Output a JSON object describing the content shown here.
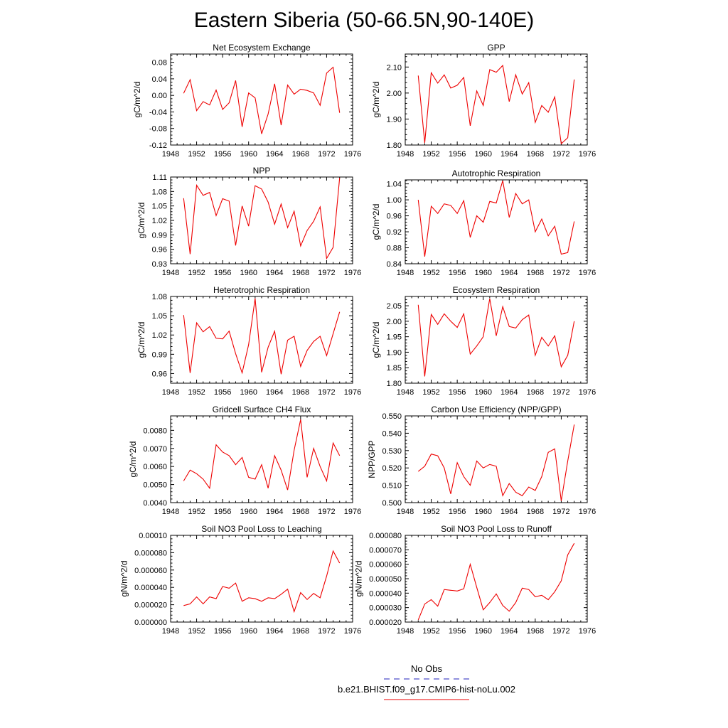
{
  "figure": {
    "title": "Eastern Siberia (50-66.5N,90-140E)",
    "legend": {
      "entries": [
        {
          "label": "No Obs",
          "color": "#2222bb",
          "style": "dashed"
        },
        {
          "label": "b.e21.BHIST.f09_g17.CMIP6-hist-noLu.002",
          "color": "#ee0000",
          "style": "solid"
        }
      ]
    }
  },
  "chart_data": [
    {
      "type": "line",
      "title": "Net Ecosystem Exchange",
      "ylabel": "gC/m^2/d",
      "xlim": [
        1948,
        1976
      ],
      "xticks": [
        1948,
        1952,
        1956,
        1960,
        1964,
        1968,
        1972,
        1976
      ],
      "ylim": [
        -0.12,
        0.1
      ],
      "yticks": [
        -0.12,
        -0.08,
        -0.04,
        0.0,
        0.04,
        0.08
      ],
      "ytick_labels": [
        "-0.12",
        "-0.08",
        "-0.04",
        "0.00",
        "0.04",
        "0.08"
      ],
      "color": "#ee0000",
      "x": [
        1950,
        1951,
        1952,
        1953,
        1954,
        1955,
        1956,
        1957,
        1958,
        1959,
        1960,
        1961,
        1962,
        1963,
        1964,
        1965,
        1966,
        1967,
        1968,
        1969,
        1970,
        1971,
        1972,
        1973,
        1974
      ],
      "y": [
        0.005,
        0.038,
        -0.037,
        -0.015,
        -0.023,
        0.013,
        -0.034,
        -0.018,
        0.036,
        -0.076,
        0.006,
        -0.006,
        -0.093,
        -0.045,
        0.028,
        -0.072,
        0.025,
        0.003,
        0.015,
        0.012,
        0.006,
        -0.024,
        0.054,
        0.068,
        -0.042
      ]
    },
    {
      "type": "line",
      "title": "GPP",
      "ylabel": "gC/m^2/d",
      "xlim": [
        1948,
        1976
      ],
      "xticks": [
        1948,
        1952,
        1956,
        1960,
        1964,
        1968,
        1972,
        1976
      ],
      "ylim": [
        1.8,
        2.15
      ],
      "yticks": [
        1.8,
        1.9,
        2.0,
        2.1
      ],
      "ytick_labels": [
        "1.80",
        "1.90",
        "2.00",
        "2.10"
      ],
      "color": "#ee0000",
      "x": [
        1950,
        1951,
        1952,
        1953,
        1954,
        1955,
        1956,
        1957,
        1958,
        1959,
        1960,
        1961,
        1962,
        1963,
        1964,
        1965,
        1966,
        1967,
        1968,
        1969,
        1970,
        1971,
        1972,
        1973,
        1974
      ],
      "y": [
        2.067,
        1.808,
        2.078,
        2.038,
        2.07,
        2.019,
        2.03,
        2.06,
        1.874,
        2.008,
        1.952,
        2.09,
        2.08,
        2.106,
        1.967,
        2.07,
        1.996,
        2.04,
        1.887,
        1.952,
        1.926,
        1.985,
        1.805,
        1.828,
        2.052
      ]
    },
    {
      "type": "line",
      "title": "NPP",
      "ylabel": "gC/m^2/d",
      "xlim": [
        1948,
        1976
      ],
      "xticks": [
        1948,
        1952,
        1956,
        1960,
        1964,
        1968,
        1972,
        1976
      ],
      "ylim": [
        0.93,
        1.11
      ],
      "yticks": [
        0.93,
        0.96,
        0.99,
        1.02,
        1.05,
        1.08,
        1.11
      ],
      "ytick_labels": [
        "0.93",
        "0.96",
        "0.99",
        "1.02",
        "1.05",
        "1.08",
        "1.11"
      ],
      "color": "#ee0000",
      "x": [
        1950,
        1951,
        1952,
        1953,
        1954,
        1955,
        1956,
        1957,
        1958,
        1959,
        1960,
        1961,
        1962,
        1963,
        1964,
        1965,
        1966,
        1967,
        1968,
        1969,
        1970,
        1971,
        1972,
        1973,
        1974
      ],
      "y": [
        1.066,
        0.95,
        1.093,
        1.072,
        1.078,
        1.03,
        1.065,
        1.06,
        0.968,
        1.05,
        1.008,
        1.092,
        1.085,
        1.058,
        1.012,
        1.054,
        1.005,
        1.039,
        0.967,
        0.999,
        1.018,
        1.048,
        0.941,
        0.964,
        1.108
      ]
    },
    {
      "type": "line",
      "title": "Autotrophic Respiration",
      "ylabel": "gC/m^2/d",
      "xlim": [
        1948,
        1976
      ],
      "xticks": [
        1948,
        1952,
        1956,
        1960,
        1964,
        1968,
        1972,
        1976
      ],
      "ylim": [
        0.84,
        1.05
      ],
      "yticks": [
        0.84,
        0.88,
        0.92,
        0.96,
        1.0,
        1.04
      ],
      "ytick_labels": [
        "0.84",
        "0.88",
        "0.92",
        "0.96",
        "1.00",
        "1.04"
      ],
      "color": "#ee0000",
      "x": [
        1950,
        1951,
        1952,
        1953,
        1954,
        1955,
        1956,
        1957,
        1958,
        1959,
        1960,
        1961,
        1962,
        1963,
        1964,
        1965,
        1966,
        1967,
        1968,
        1969,
        1970,
        1971,
        1972,
        1973,
        1974
      ],
      "y": [
        1.0,
        0.858,
        0.984,
        0.966,
        0.99,
        0.986,
        0.966,
        0.998,
        0.906,
        0.96,
        0.944,
        0.996,
        0.992,
        1.048,
        0.956,
        1.016,
        0.99,
        1.0,
        0.92,
        0.952,
        0.91,
        0.934,
        0.864,
        0.868,
        0.946
      ]
    },
    {
      "type": "line",
      "title": "Heterotrophic Respiration",
      "ylabel": "gC/m^2/d",
      "xlim": [
        1948,
        1976
      ],
      "xticks": [
        1948,
        1952,
        1956,
        1960,
        1964,
        1968,
        1972,
        1976
      ],
      "ylim": [
        0.945,
        1.08
      ],
      "yticks": [
        0.96,
        0.99,
        1.02,
        1.05,
        1.08
      ],
      "ytick_labels": [
        "0.96",
        "0.99",
        "1.02",
        "1.05",
        "1.08"
      ],
      "color": "#ee0000",
      "x": [
        1950,
        1951,
        1952,
        1953,
        1954,
        1955,
        1956,
        1957,
        1958,
        1959,
        1960,
        1961,
        1962,
        1963,
        1964,
        1965,
        1966,
        1967,
        1968,
        1969,
        1970,
        1971,
        1972,
        1973,
        1974
      ],
      "y": [
        1.051,
        0.961,
        1.039,
        1.025,
        1.033,
        1.015,
        1.014,
        1.026,
        0.991,
        0.961,
        1.005,
        1.077,
        0.962,
        1.001,
        1.026,
        0.959,
        1.012,
        1.018,
        0.971,
        0.996,
        1.01,
        1.018,
        0.988,
        1.022,
        1.056
      ]
    },
    {
      "type": "line",
      "title": "Ecosystem Respiration",
      "ylabel": "gC/m^2/d",
      "xlim": [
        1948,
        1976
      ],
      "xticks": [
        1948,
        1952,
        1956,
        1960,
        1964,
        1968,
        1972,
        1976
      ],
      "ylim": [
        1.8,
        2.08
      ],
      "yticks": [
        1.8,
        1.85,
        1.9,
        1.95,
        2.0,
        2.05
      ],
      "ytick_labels": [
        "1.80",
        "1.85",
        "1.90",
        "1.95",
        "2.00",
        "2.05"
      ],
      "color": "#ee0000",
      "x": [
        1950,
        1951,
        1952,
        1953,
        1954,
        1955,
        1956,
        1957,
        1958,
        1959,
        1960,
        1961,
        1962,
        1963,
        1964,
        1965,
        1966,
        1967,
        1968,
        1969,
        1970,
        1971,
        1972,
        1973,
        1974
      ],
      "y": [
        2.053,
        1.822,
        2.022,
        1.99,
        2.024,
        2.0,
        1.98,
        2.024,
        1.894,
        1.92,
        1.95,
        2.073,
        1.953,
        2.047,
        1.983,
        1.978,
        2.005,
        2.02,
        1.89,
        1.948,
        1.92,
        1.953,
        1.853,
        1.89,
        2.0
      ]
    },
    {
      "type": "line",
      "title": "Gridcell Surface CH4 Flux",
      "ylabel": "gC/m^2/d",
      "xlim": [
        1948,
        1976
      ],
      "xticks": [
        1948,
        1952,
        1956,
        1960,
        1964,
        1968,
        1972,
        1976
      ],
      "ylim": [
        0.004,
        0.0088
      ],
      "yticks": [
        0.004,
        0.005,
        0.006,
        0.007,
        0.008
      ],
      "ytick_labels": [
        "0.0040",
        "0.0050",
        "0.0060",
        "0.0070",
        "0.0080"
      ],
      "color": "#ee0000",
      "x": [
        1950,
        1951,
        1952,
        1953,
        1954,
        1955,
        1956,
        1957,
        1958,
        1959,
        1960,
        1961,
        1962,
        1963,
        1964,
        1965,
        1966,
        1967,
        1968,
        1969,
        1970,
        1971,
        1972,
        1973,
        1974
      ],
      "y": [
        0.0052,
        0.0058,
        0.0056,
        0.0053,
        0.0048,
        0.0072,
        0.0068,
        0.0066,
        0.0061,
        0.0065,
        0.0054,
        0.0053,
        0.0061,
        0.0048,
        0.0066,
        0.0058,
        0.0047,
        0.0069,
        0.0086,
        0.0054,
        0.007,
        0.006,
        0.0052,
        0.0073,
        0.0066
      ]
    },
    {
      "type": "line",
      "title": "Carbon Use Efficiency (NPP/GPP)",
      "ylabel": "NPP/GPP",
      "xlim": [
        1948,
        1976
      ],
      "xticks": [
        1948,
        1952,
        1956,
        1960,
        1964,
        1968,
        1972,
        1976
      ],
      "ylim": [
        0.5,
        0.55
      ],
      "yticks": [
        0.5,
        0.51,
        0.52,
        0.53,
        0.54,
        0.55
      ],
      "ytick_labels": [
        "0.500",
        "0.510",
        "0.520",
        "0.530",
        "0.540",
        "0.550"
      ],
      "color": "#ee0000",
      "x": [
        1950,
        1951,
        1952,
        1953,
        1954,
        1955,
        1956,
        1957,
        1958,
        1959,
        1960,
        1961,
        1962,
        1963,
        1964,
        1965,
        1966,
        1967,
        1968,
        1969,
        1970,
        1971,
        1972,
        1973,
        1974
      ],
      "y": [
        0.518,
        0.521,
        0.528,
        0.527,
        0.52,
        0.505,
        0.523,
        0.515,
        0.51,
        0.524,
        0.52,
        0.522,
        0.521,
        0.504,
        0.511,
        0.506,
        0.504,
        0.509,
        0.507,
        0.515,
        0.529,
        0.531,
        0.501,
        0.524,
        0.545
      ]
    },
    {
      "type": "line",
      "title": "Soil NO3 Pool Loss to Leaching",
      "ylabel": "gN/m^2/d",
      "xlim": [
        1948,
        1976
      ],
      "xticks": [
        1948,
        1952,
        1956,
        1960,
        1964,
        1968,
        1972,
        1976
      ],
      "ylim": [
        0.0,
        0.0001
      ],
      "yticks": [
        0.0,
        2e-05,
        4e-05,
        6e-05,
        8e-05,
        0.0001
      ],
      "ytick_labels": [
        "0.000000",
        "0.000020",
        "0.000040",
        "0.000060",
        "0.000080",
        "0.00010"
      ],
      "color": "#ee0000",
      "x": [
        1950,
        1951,
        1952,
        1953,
        1954,
        1955,
        1956,
        1957,
        1958,
        1959,
        1960,
        1961,
        1962,
        1963,
        1964,
        1965,
        1966,
        1967,
        1968,
        1969,
        1970,
        1971,
        1972,
        1973,
        1974
      ],
      "y": [
        1.9e-05,
        2.1e-05,
        2.9e-05,
        2.1e-05,
        2.9e-05,
        2.7e-05,
        4.1e-05,
        3.9e-05,
        4.5e-05,
        2.4e-05,
        2.8e-05,
        2.7e-05,
        2.4e-05,
        2.8e-05,
        2.7e-05,
        3.2e-05,
        3.8e-05,
        1.2e-05,
        3.4e-05,
        2.6e-05,
        3.3e-05,
        2.8e-05,
        5.3e-05,
        8.2e-05,
        6.8e-05
      ]
    },
    {
      "type": "line",
      "title": "Soil NO3 Pool Loss to Runoff",
      "ylabel": "gN/m^2/d",
      "xlim": [
        1948,
        1976
      ],
      "xticks": [
        1948,
        1952,
        1956,
        1960,
        1964,
        1968,
        1972,
        1976
      ],
      "ylim": [
        2e-05,
        8e-05
      ],
      "yticks": [
        2e-05,
        3e-05,
        4e-05,
        5e-05,
        6e-05,
        7e-05,
        8e-05
      ],
      "ytick_labels": [
        "0.000020",
        "0.000030",
        "0.000040",
        "0.000050",
        "0.000060",
        "0.000070",
        "0.000080"
      ],
      "color": "#ee0000",
      "x": [
        1950,
        1951,
        1952,
        1953,
        1954,
        1955,
        1956,
        1957,
        1958,
        1959,
        1960,
        1961,
        1962,
        1963,
        1964,
        1965,
        1966,
        1967,
        1968,
        1969,
        1970,
        1971,
        1972,
        1973,
        1974
      ],
      "y": [
        2.15e-05,
        3.25e-05,
        3.55e-05,
        3.1e-05,
        4.25e-05,
        4.2e-05,
        4.15e-05,
        4.3e-05,
        6e-05,
        4.4e-05,
        2.85e-05,
        3.35e-05,
        3.95e-05,
        3.15e-05,
        2.75e-05,
        3.35e-05,
        4.35e-05,
        4.25e-05,
        3.75e-05,
        3.85e-05,
        3.55e-05,
        4.1e-05,
        4.85e-05,
        6.65e-05,
        7.45e-05
      ]
    }
  ]
}
